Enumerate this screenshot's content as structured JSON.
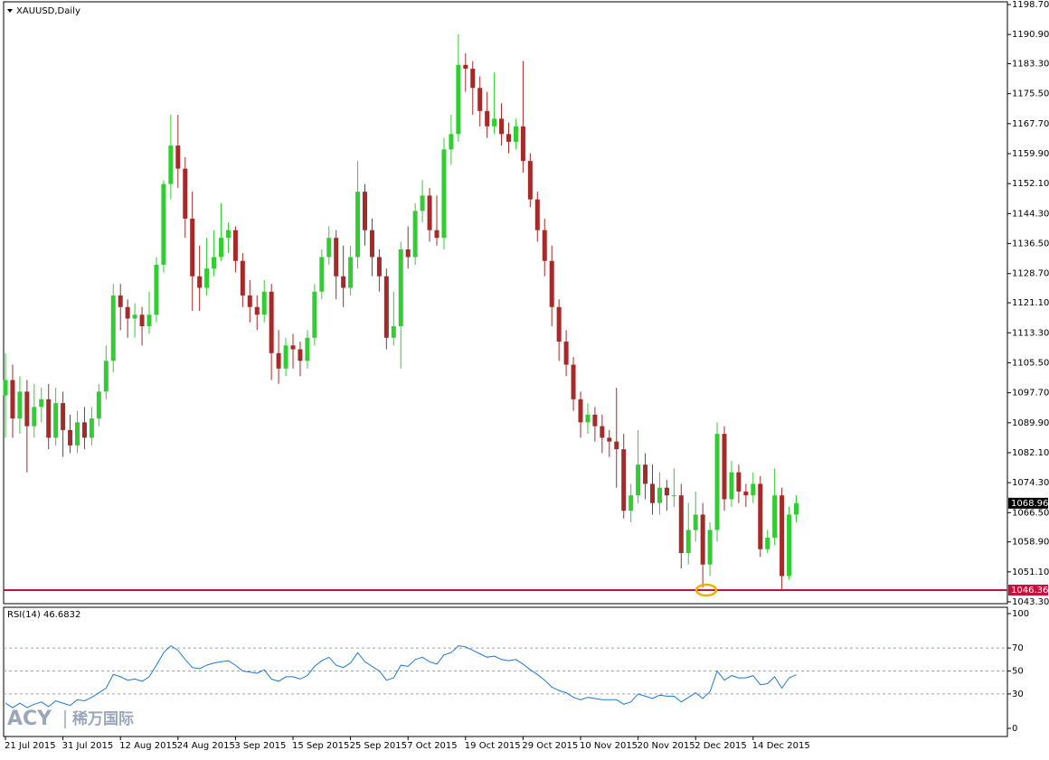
{
  "chart_data": [
    {
      "type": "candlestick",
      "title": "XAUUSD,Daily",
      "categories": [
        "21 Jul 2015",
        null,
        null,
        null,
        null,
        null,
        null,
        null,
        "31 Jul 2015",
        null,
        null,
        null,
        null,
        null,
        null,
        null,
        "12 Aug 2015",
        null,
        null,
        null,
        null,
        null,
        null,
        null,
        "24 Aug 2015",
        null,
        null,
        null,
        null,
        null,
        null,
        null,
        "3 Sep 2015",
        null,
        null,
        null,
        null,
        null,
        null,
        null,
        "15 Sep 2015",
        null,
        null,
        null,
        null,
        null,
        null,
        null,
        "25 Sep 2015",
        null,
        null,
        null,
        null,
        null,
        null,
        null,
        "7 Oct 2015",
        null,
        null,
        null,
        null,
        null,
        null,
        null,
        "19 Oct 2015",
        null,
        null,
        null,
        null,
        null,
        null,
        null,
        "29 Oct 2015",
        null,
        null,
        null,
        null,
        null,
        null,
        null,
        "10 Nov 2015",
        null,
        null,
        null,
        null,
        null,
        null,
        null,
        "20 Nov 2015",
        null,
        null,
        null,
        null,
        null,
        null,
        null,
        "2 Dec 2015",
        null,
        null,
        null,
        null,
        null,
        null,
        null,
        "14 Dec 2015",
        null,
        null,
        null,
        null,
        null,
        null
      ],
      "open": [
        1097,
        1101,
        1091,
        1098,
        1089,
        1094,
        1096,
        1086,
        1095,
        1088,
        1084,
        1090,
        1086,
        1091,
        1098,
        1106,
        1123,
        1120,
        1117,
        1118,
        1115,
        1118,
        1131,
        1152,
        1162,
        1156,
        1143,
        1128,
        1125,
        1130,
        1133,
        1138,
        1140,
        1132,
        1123,
        1120,
        1118,
        1124,
        1108,
        1104,
        1110,
        1109,
        1106,
        1112,
        1124,
        1133,
        1138,
        1128,
        1125,
        1133,
        1150,
        1140,
        1133,
        1128,
        1112,
        1115,
        1135,
        1133,
        1145,
        1149,
        1140,
        1138,
        1161,
        1165,
        1183,
        1182,
        1177,
        1171,
        1167,
        1169,
        1165,
        1163,
        1167,
        1158,
        1148,
        1140,
        1132,
        1120,
        1111,
        1105,
        1096,
        1090,
        1092,
        1089,
        1086,
        1085,
        1083,
        1067,
        1071,
        1079,
        1074,
        1069,
        1073,
        1071,
        1071,
        1056,
        1062,
        1066,
        1053,
        1062,
        1087,
        1070,
        1077,
        1072,
        1071,
        1074,
        1057,
        1060,
        1071,
        1050,
        1066
      ],
      "high": [
        1108,
        1105,
        1102,
        1101,
        1100,
        1099,
        1100,
        1099,
        1098,
        1092,
        1093,
        1094,
        1094,
        1100,
        1110,
        1126,
        1126,
        1122,
        1121,
        1120,
        1124,
        1133,
        1153,
        1170,
        1170,
        1159,
        1150,
        1136,
        1138,
        1140,
        1147,
        1142,
        1141,
        1134,
        1127,
        1123,
        1127,
        1126,
        1114,
        1112,
        1113,
        1111,
        1114,
        1126,
        1135,
        1141,
        1140,
        1136,
        1136,
        1158,
        1152,
        1143,
        1135,
        1130,
        1124,
        1137,
        1141,
        1147,
        1153,
        1151,
        1149,
        1164,
        1170,
        1191,
        1186,
        1184,
        1180,
        1176,
        1181,
        1173,
        1168,
        1169,
        1184,
        1160,
        1150,
        1143,
        1136,
        1122,
        1114,
        1107,
        1098,
        1095,
        1094,
        1092,
        1088,
        1099,
        1087,
        1074,
        1088,
        1082,
        1079,
        1077,
        1075,
        1078,
        1074,
        1069,
        1072,
        1069,
        1064,
        1090,
        1089,
        1080,
        1079,
        1074,
        1077,
        1076,
        1062,
        1078,
        1073,
        1068,
        1071
      ],
      "low": [
        1086,
        1086,
        1087,
        1077,
        1086,
        1090,
        1083,
        1084,
        1081,
        1082,
        1082,
        1083,
        1084,
        1089,
        1096,
        1103,
        1114,
        1112,
        1112,
        1110,
        1113,
        1116,
        1129,
        1148,
        1151,
        1138,
        1119,
        1119,
        1123,
        1128,
        1132,
        1134,
        1129,
        1120,
        1116,
        1114,
        1116,
        1101,
        1100,
        1102,
        1104,
        1102,
        1104,
        1110,
        1122,
        1131,
        1122,
        1120,
        1123,
        1130,
        1136,
        1128,
        1124,
        1109,
        1110,
        1104,
        1130,
        1131,
        1142,
        1137,
        1136,
        1135,
        1157,
        1163,
        1176,
        1170,
        1167,
        1164,
        1165,
        1162,
        1160,
        1161,
        1155,
        1146,
        1137,
        1128,
        1115,
        1106,
        1102,
        1093,
        1086,
        1087,
        1085,
        1082,
        1081,
        1073,
        1065,
        1064,
        1069,
        1070,
        1066,
        1066,
        1067,
        1068,
        1052,
        1053,
        1059,
        1047,
        1050,
        1059,
        1067,
        1068,
        1069,
        1068,
        1069,
        1055,
        1056,
        1058,
        1046.5,
        1049,
        1064
      ],
      "close": [
        1101,
        1091,
        1098,
        1089,
        1094,
        1096,
        1086,
        1095,
        1088,
        1084,
        1090,
        1086,
        1091,
        1098,
        1106,
        1123,
        1120,
        1117,
        1118,
        1115,
        1118,
        1131,
        1152,
        1162,
        1156,
        1143,
        1128,
        1125,
        1130,
        1133,
        1138,
        1140,
        1132,
        1123,
        1120,
        1118,
        1124,
        1108,
        1104,
        1110,
        1109,
        1106,
        1112,
        1124,
        1133,
        1138,
        1128,
        1125,
        1133,
        1150,
        1140,
        1133,
        1128,
        1112,
        1115,
        1135,
        1133,
        1145,
        1149,
        1140,
        1138,
        1161,
        1165,
        1183,
        1182,
        1177,
        1171,
        1167,
        1169,
        1165,
        1163,
        1167,
        1158,
        1148,
        1140,
        1132,
        1120,
        1111,
        1105,
        1096,
        1090,
        1092,
        1089,
        1086,
        1085,
        1083,
        1067,
        1071,
        1079,
        1074,
        1069,
        1073,
        1071,
        1071,
        1056,
        1062,
        1066,
        1053,
        1062,
        1087,
        1070,
        1077,
        1072,
        1071,
        1074,
        1057,
        1060,
        1071,
        1050,
        1066,
        1068.96
      ],
      "bull_color": "#32cd32",
      "bear_color": "#a52a2a",
      "ylim": [
        1043.3,
        1198.7
      ],
      "yticks": [
        {
          "value": 1043.3,
          "label": "1043.30"
        },
        {
          "value": 1051.1,
          "label": "1051.10"
        },
        {
          "value": 1058.9,
          "label": "1058.90"
        },
        {
          "value": 1066.5,
          "label": "1066.50"
        },
        {
          "value": 1074.3,
          "label": "1074.30"
        },
        {
          "value": 1082.1,
          "label": "1082.10"
        },
        {
          "value": 1089.9,
          "label": "1089.90"
        },
        {
          "value": 1097.7,
          "label": "1097.70"
        },
        {
          "value": 1105.5,
          "label": "1105.50"
        },
        {
          "value": 1113.3,
          "label": "1113.30"
        },
        {
          "value": 1121.1,
          "label": "1121.10"
        },
        {
          "value": 1128.7,
          "label": "1128.70"
        },
        {
          "value": 1136.5,
          "label": "1136.50"
        },
        {
          "value": 1144.3,
          "label": "1144.30"
        },
        {
          "value": 1152.1,
          "label": "1152.10"
        },
        {
          "value": 1159.9,
          "label": "1159.90"
        },
        {
          "value": 1167.7,
          "label": "1167.70"
        },
        {
          "value": 1175.5,
          "label": "1175.50"
        },
        {
          "value": 1183.3,
          "label": "1183.30"
        },
        {
          "value": 1190.9,
          "label": "1190.90"
        },
        {
          "value": 1198.7,
          "label": "1198.70"
        }
      ],
      "last_price": 1068.96,
      "hline": {
        "value": 1046.36,
        "color": "#c8103c"
      }
    },
    {
      "type": "line",
      "title": "RSI(14) 46.6832",
      "color": "#1e78d2",
      "values": [
        22,
        18,
        22,
        18,
        21,
        23,
        19,
        24,
        22,
        20,
        25,
        24,
        27,
        31,
        35,
        47,
        45,
        42,
        43,
        41,
        45,
        55,
        66,
        72,
        68,
        60,
        53,
        52,
        55,
        57,
        58,
        59,
        55,
        50,
        49,
        48,
        51,
        43,
        41,
        45,
        45,
        43,
        46,
        54,
        59,
        62,
        55,
        53,
        57,
        66,
        58,
        54,
        50,
        42,
        44,
        55,
        54,
        60,
        62,
        58,
        56,
        64,
        66,
        72,
        71,
        68,
        65,
        62,
        63,
        60,
        59,
        60,
        56,
        51,
        47,
        42,
        36,
        33,
        31,
        27,
        25,
        27,
        26,
        25,
        25,
        25,
        21,
        23,
        30,
        28,
        26,
        29,
        28,
        28,
        23,
        27,
        31,
        26,
        32,
        50,
        42,
        46,
        44,
        44,
        46,
        38,
        39,
        45,
        35,
        44,
        46.68
      ],
      "ylim": [
        0,
        100
      ],
      "yticks": [
        0,
        30,
        50,
        70,
        100
      ],
      "levels": [
        30,
        50,
        70
      ]
    }
  ],
  "watermark": {
    "brand": "ACY",
    "name": "稀万国际"
  }
}
